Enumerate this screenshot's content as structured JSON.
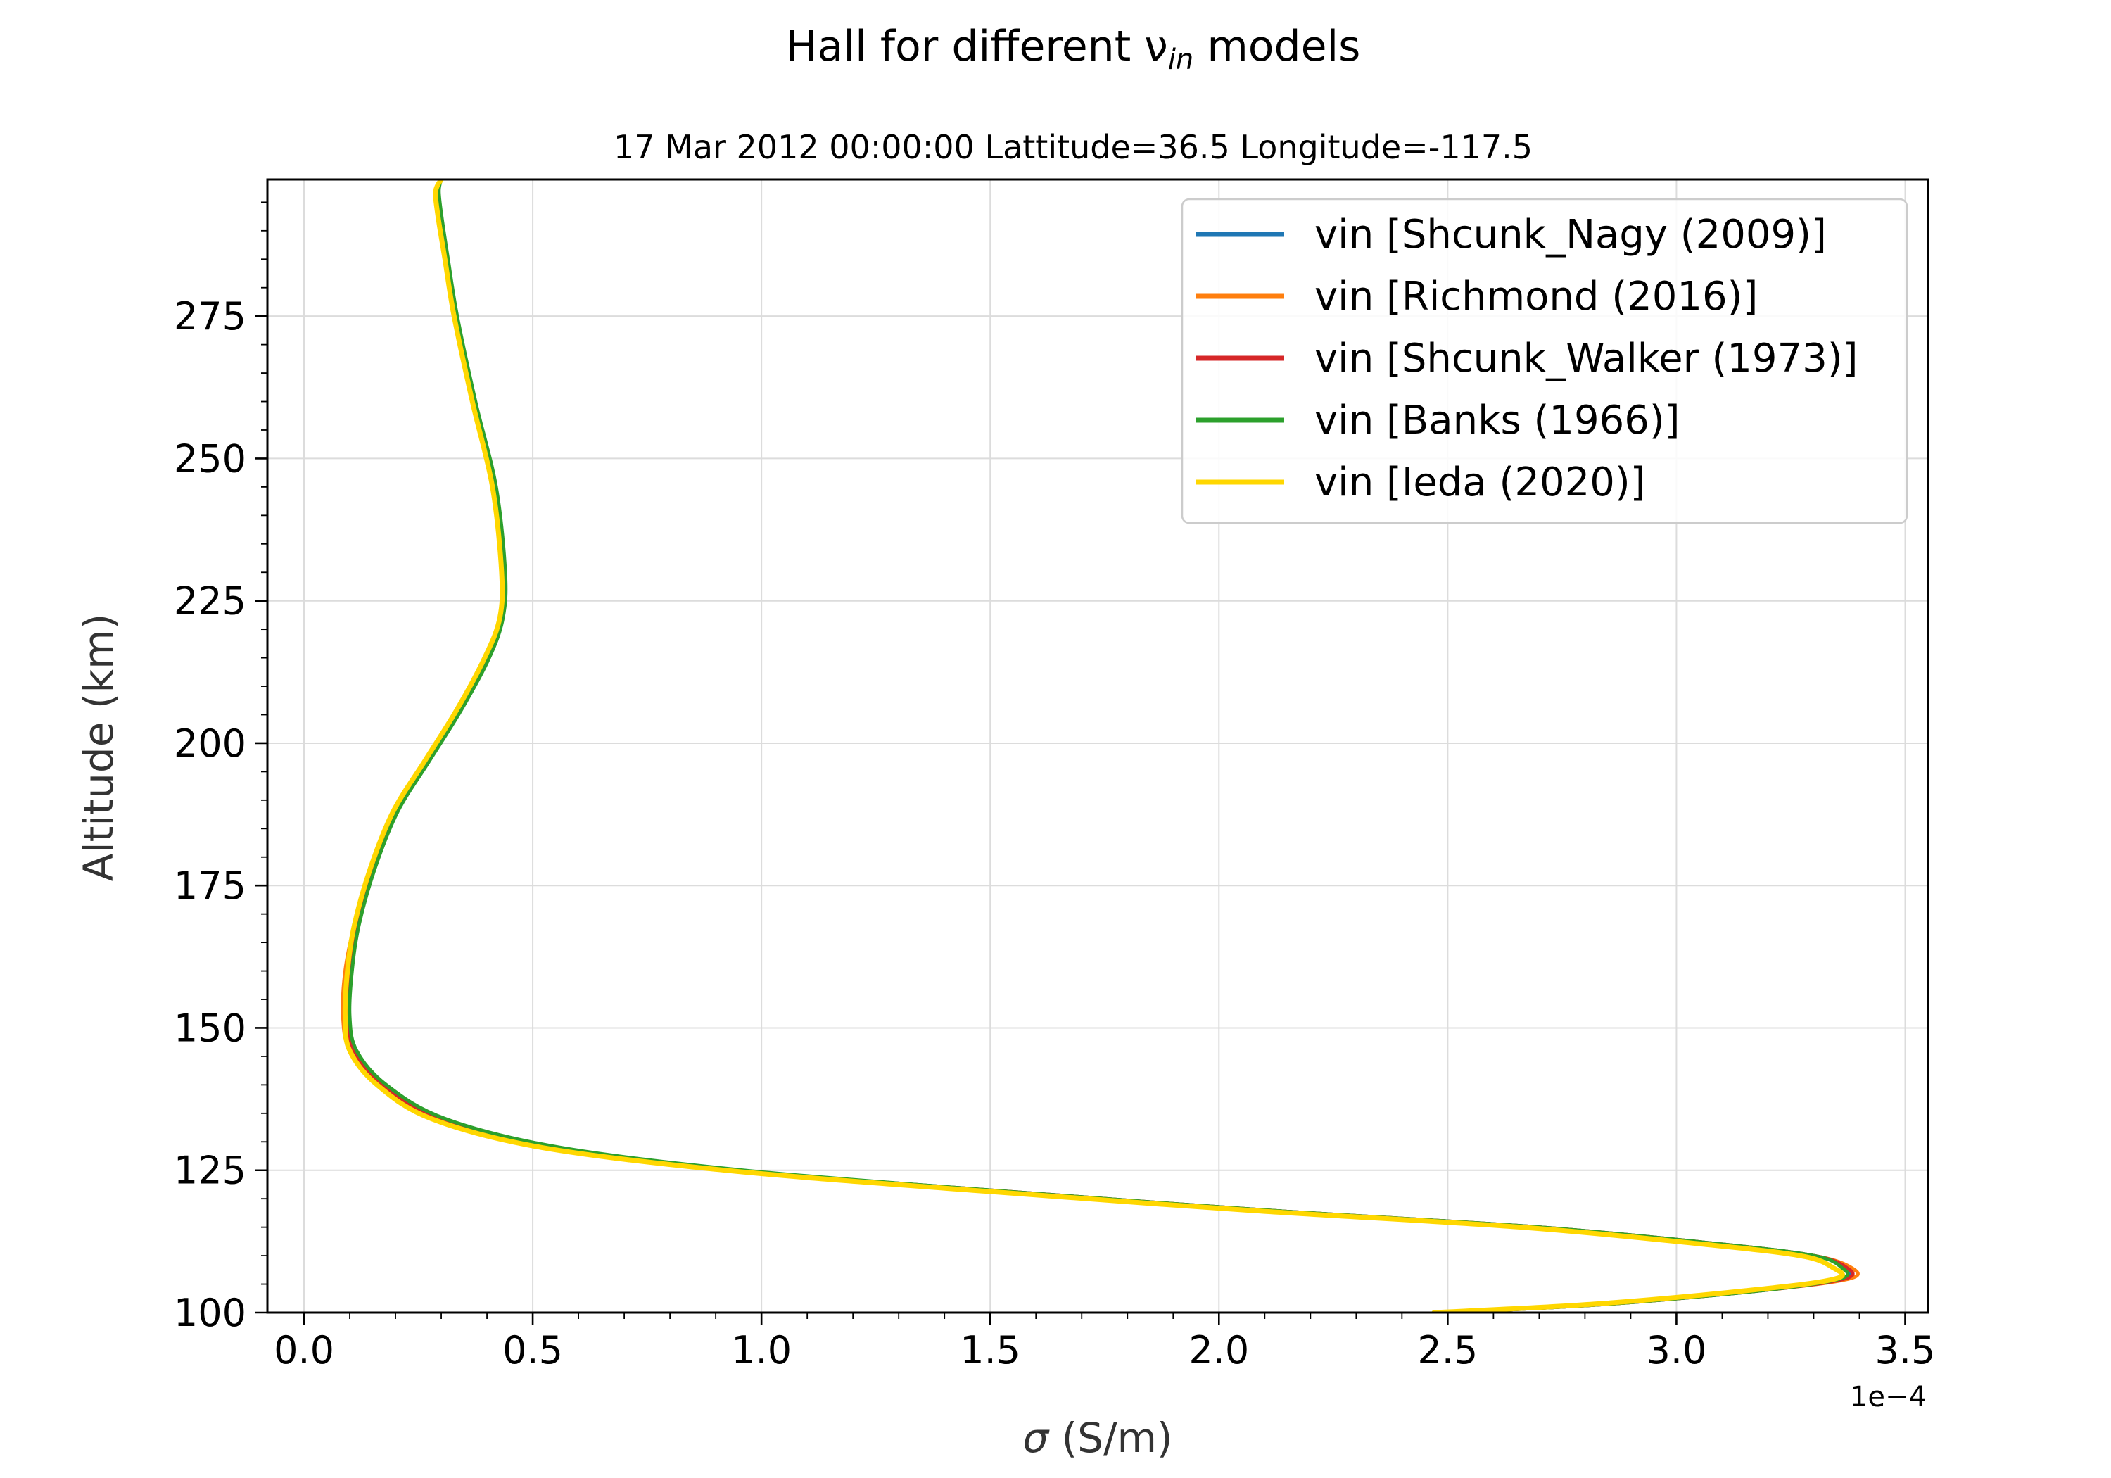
{
  "chart_data": {
    "type": "line",
    "title": "Hall for different ν",
    "title_subscript": "in",
    "title_suffix": " models",
    "subtitle": "17 Mar 2012 00:00:00 Lattitude=36.5 Longitude=-117.5",
    "xlabel_symbol": "σ",
    "xlabel": " (S/m)",
    "ylabel": "Altitude (km)",
    "x_offset_label": "1e−4",
    "xlim": [
      -0.08,
      3.55
    ],
    "ylim": [
      100,
      299
    ],
    "x_ticks": [
      0.0,
      0.5,
      1.0,
      1.5,
      2.0,
      2.5,
      3.0,
      3.5
    ],
    "x_tick_labels": [
      "0.0",
      "0.5",
      "1.0",
      "1.5",
      "2.0",
      "2.5",
      "3.0",
      "3.5"
    ],
    "y_ticks": [
      100,
      125,
      150,
      175,
      200,
      225,
      250,
      275
    ],
    "y_tick_labels": [
      "100",
      "125",
      "150",
      "175",
      "200",
      "225",
      "250",
      "275"
    ],
    "grid": true,
    "legend_position": "upper-right",
    "x_unit_scale": "1e-4",
    "series": [
      {
        "name": "vin [Shcunk_Nagy (2009)]",
        "color": "#1f77b4",
        "x": [
          2.5,
          2.85,
          3.2,
          3.36,
          3.37,
          3.3,
          3.1,
          2.7,
          2.1,
          1.5,
          0.95,
          0.55,
          0.3,
          0.17,
          0.11,
          0.095,
          0.1,
          0.115,
          0.15,
          0.2,
          0.27,
          0.34,
          0.4,
          0.43,
          0.435,
          0.415,
          0.37,
          0.33,
          0.31,
          0.295,
          0.29,
          0.3
        ],
        "y": [
          100,
          101.5,
          104,
          106,
          108,
          110,
          112,
          115,
          118,
          121.5,
          125,
          129,
          134,
          140,
          146,
          152,
          160,
          168,
          178,
          188,
          197,
          206,
          215,
          222,
          230,
          245,
          260,
          275,
          285,
          293,
          297,
          299
        ]
      },
      {
        "name": "vin [Richmond (2016)]",
        "color": "#ff7f0e",
        "x": [
          2.5,
          2.85,
          3.2,
          3.38,
          3.38,
          3.3,
          3.1,
          2.7,
          2.1,
          1.5,
          0.95,
          0.55,
          0.29,
          0.16,
          0.1,
          0.085,
          0.09,
          0.11,
          0.145,
          0.2,
          0.27,
          0.34,
          0.4,
          0.43,
          0.435,
          0.415,
          0.37,
          0.33,
          0.31,
          0.295,
          0.29,
          0.3
        ],
        "y": [
          100,
          101.5,
          104,
          106,
          108,
          110,
          112,
          115,
          118,
          121.5,
          125,
          129,
          134,
          140,
          146,
          152,
          160,
          168,
          178,
          188,
          197,
          206,
          215,
          222,
          230,
          245,
          260,
          275,
          285,
          293,
          297,
          299
        ]
      },
      {
        "name": "vin [Shcunk_Walker (1973)]",
        "color": "#d62728",
        "x": [
          2.5,
          2.85,
          3.2,
          3.37,
          3.37,
          3.3,
          3.1,
          2.7,
          2.1,
          1.5,
          0.95,
          0.55,
          0.3,
          0.17,
          0.11,
          0.095,
          0.1,
          0.115,
          0.15,
          0.2,
          0.27,
          0.34,
          0.4,
          0.43,
          0.435,
          0.415,
          0.37,
          0.33,
          0.31,
          0.295,
          0.29,
          0.3
        ],
        "y": [
          100,
          101.5,
          104,
          106,
          108,
          110,
          112,
          115,
          118,
          121.5,
          125,
          129,
          134,
          140,
          146,
          152,
          160,
          168,
          178,
          188,
          197,
          206,
          215,
          222,
          230,
          245,
          260,
          275,
          285,
          293,
          297,
          299
        ]
      },
      {
        "name": "vin [Banks (1966)]",
        "color": "#2ca02c",
        "x": [
          2.5,
          2.85,
          3.2,
          3.36,
          3.36,
          3.3,
          3.1,
          2.7,
          2.1,
          1.5,
          0.96,
          0.56,
          0.31,
          0.18,
          0.115,
          0.1,
          0.105,
          0.12,
          0.155,
          0.205,
          0.275,
          0.345,
          0.405,
          0.435,
          0.44,
          0.42,
          0.375,
          0.335,
          0.315,
          0.3,
          0.295,
          0.3
        ],
        "y": [
          100,
          101.5,
          104,
          106,
          108,
          110,
          112,
          115,
          118,
          121.5,
          125,
          129,
          134,
          140,
          146,
          152,
          160,
          168,
          178,
          188,
          197,
          206,
          215,
          222,
          230,
          245,
          260,
          275,
          285,
          293,
          297,
          299
        ]
      },
      {
        "name": "vin [Ieda (2020)]",
        "color": "#ffd700",
        "x": [
          2.47,
          2.82,
          3.17,
          3.35,
          3.34,
          3.27,
          3.06,
          2.66,
          2.06,
          1.46,
          0.92,
          0.52,
          0.28,
          0.16,
          0.1,
          0.09,
          0.095,
          0.11,
          0.145,
          0.195,
          0.265,
          0.335,
          0.395,
          0.428,
          0.432,
          0.412,
          0.368,
          0.328,
          0.308,
          0.292,
          0.288,
          0.3
        ],
        "y": [
          100,
          101.5,
          104,
          106,
          108,
          110,
          112,
          115,
          118,
          121.5,
          125,
          129,
          134,
          140,
          146,
          152,
          160,
          168,
          178,
          188,
          197,
          206,
          215,
          222,
          230,
          245,
          260,
          275,
          285,
          293,
          297,
          299
        ]
      }
    ]
  }
}
